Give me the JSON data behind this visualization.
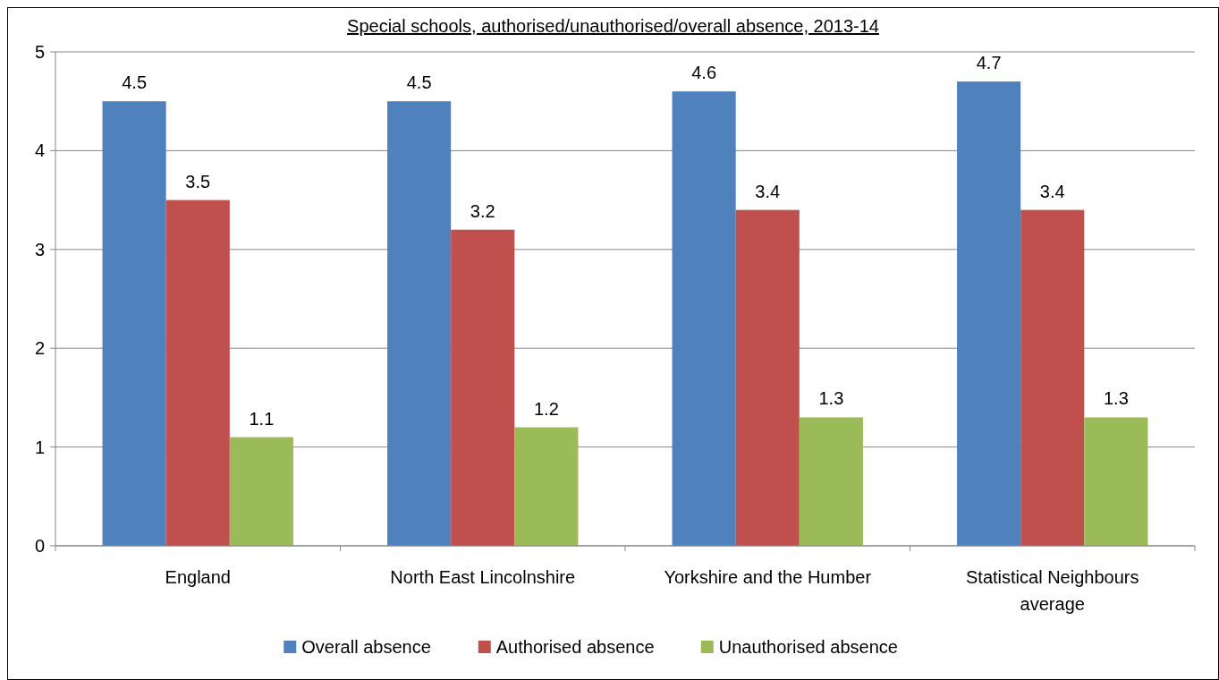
{
  "chart_data": {
    "type": "bar",
    "title": "Special schools, authorised/unauthorised/overall absence, 2013-14",
    "categories": [
      "England",
      "North East Lincolnshire",
      "Yorkshire and the Humber",
      "Statistical Neighbours average"
    ],
    "series": [
      {
        "name": "Overall absence",
        "color": "#4f81bd",
        "values": [
          4.5,
          4.5,
          4.6,
          4.7
        ]
      },
      {
        "name": "Authorised absence",
        "color": "#c0504d",
        "values": [
          3.5,
          3.2,
          3.4,
          3.4
        ]
      },
      {
        "name": "Unauthorised absence",
        "color": "#9bbb59",
        "values": [
          1.1,
          1.2,
          1.3,
          1.3
        ]
      }
    ],
    "ylim": [
      0,
      5
    ],
    "yticks": [
      0,
      1,
      2,
      3,
      4,
      5
    ],
    "grid": "y",
    "legend": "bottom",
    "data_labels": true
  }
}
